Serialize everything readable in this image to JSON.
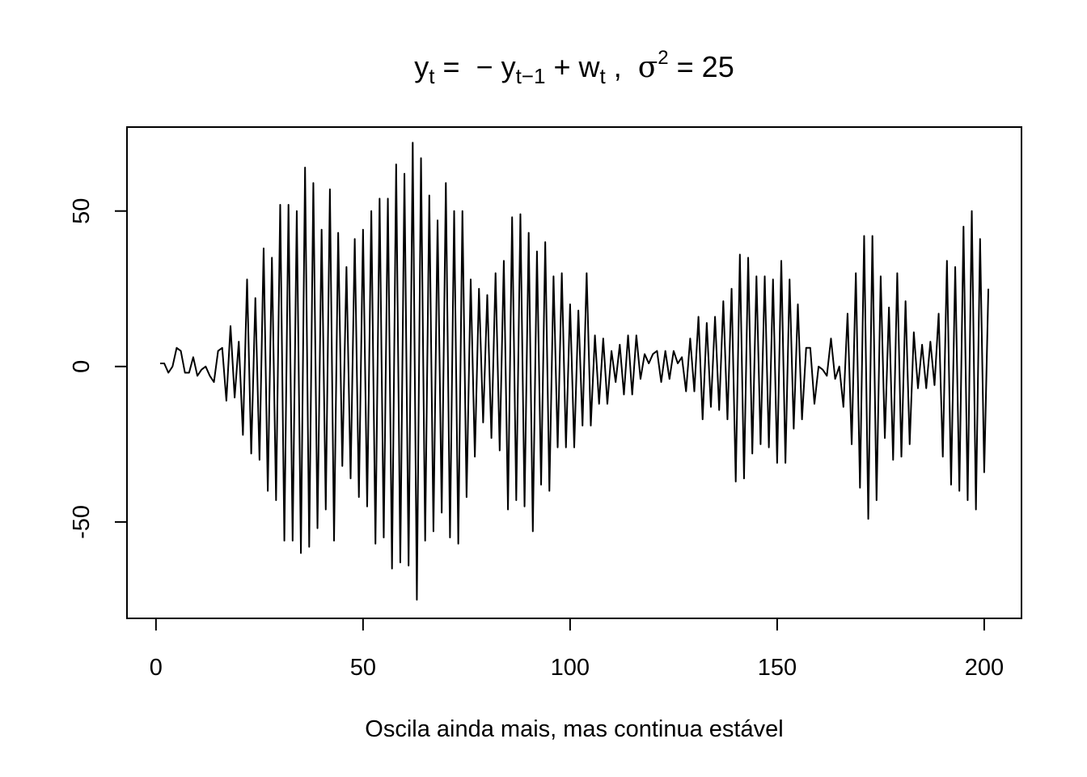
{
  "chart_data": {
    "type": "line",
    "title": "y_t = -y_{t-1} + w_t ,  σ² = 25",
    "title_parts": {
      "y": "y",
      "t": "t",
      "eq": " =  − ",
      "tminus1": "t−1",
      "plus": " + ",
      "w": "w",
      "comma": " ,  ",
      "sigma": "σ",
      "two": "2",
      "value": " = 25"
    },
    "xlabel": "Oscila ainda mais, mas continua estável",
    "ylabel": "",
    "xlim": [
      -7,
      209
    ],
    "ylim": [
      -81,
      77
    ],
    "xticks": [
      0,
      50,
      100,
      150,
      200
    ],
    "yticks": [
      -50,
      0,
      50
    ],
    "xtick_labels": [
      "0",
      "50",
      "100",
      "150",
      "200"
    ],
    "ytick_labels": [
      "-50",
      "0",
      "50"
    ],
    "grid": false,
    "legend": "none",
    "line_color": "#000000",
    "series": [
      {
        "x_start": 1,
        "values": [
          1,
          1,
          -2,
          0,
          6,
          5,
          -2,
          -2,
          3,
          -3,
          -1,
          0,
          -3,
          -5,
          5,
          6,
          -11,
          13,
          -10,
          8,
          -22,
          28,
          -28,
          22,
          -30,
          38,
          -40,
          35,
          -43,
          52,
          -56,
          52,
          -56,
          50,
          -60,
          64,
          -58,
          59,
          -52,
          44,
          -46,
          57,
          -56,
          43,
          -32,
          32,
          -36,
          41,
          -42,
          44,
          -45,
          50,
          -57,
          54,
          -55,
          54,
          -65,
          65,
          -63,
          62,
          -64,
          72,
          -75,
          67,
          -56,
          55,
          -53,
          47,
          -47,
          59,
          -55,
          50,
          -57,
          50,
          -42,
          28,
          -29,
          25,
          -18,
          23,
          -23,
          30,
          -27,
          34,
          -46,
          48,
          -43,
          49,
          -45,
          43,
          -53,
          37,
          -38,
          40,
          -40,
          29,
          -26,
          30,
          -26,
          20,
          -26,
          18,
          -19,
          30,
          -19,
          10,
          -12,
          9,
          -12,
          5,
          -5,
          7,
          -9,
          10,
          -9,
          10,
          -4,
          4,
          1,
          4,
          5,
          -5,
          5,
          -4,
          5,
          1,
          3,
          -8,
          9,
          -8,
          16,
          -17,
          14,
          -13,
          16,
          -14,
          21,
          -17,
          25,
          -37,
          36,
          -36,
          35,
          -28,
          29,
          -25,
          29,
          -26,
          28,
          -31,
          34,
          -31,
          28,
          -20,
          20,
          -17,
          6,
          6,
          -12,
          0,
          -1,
          -3,
          9,
          -4,
          0,
          -13,
          17,
          -25,
          30,
          -39,
          42,
          -49,
          42,
          -43,
          29,
          -23,
          19,
          -30,
          30,
          -29,
          21,
          -25,
          11,
          -7,
          7,
          -7,
          8,
          -6,
          17,
          -29,
          34,
          -38,
          32,
          -40,
          45,
          -43,
          50,
          -46,
          41,
          -34,
          25
        ]
      }
    ]
  }
}
